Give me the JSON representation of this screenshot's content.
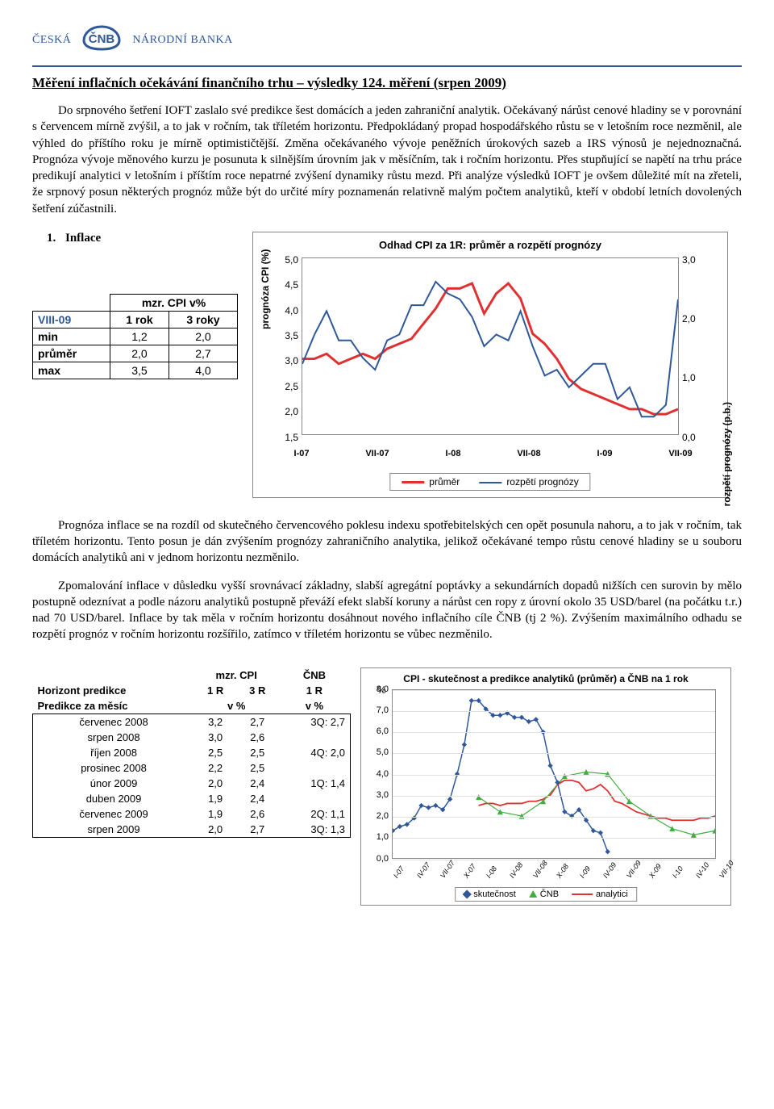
{
  "logo": {
    "left": "ČESKÁ",
    "right": "NÁRODNÍ BANKA",
    "abbr": "ČNB"
  },
  "title": "Měření inflačních očekávání finančního trhu – výsledky 124. měření (srpen 2009)",
  "para1": "Do srpnového šetření IOFT zaslalo své predikce šest domácích a jeden zahraniční analytik. Očekávaný nárůst cenové hladiny se v porovnání s červencem mírně zvýšil, a to jak v ročním, tak tříletém horizontu. Předpokládaný propad hospodářského růstu se v letošním roce nezměnil, ale výhled do příštího roku je mírně optimističtější. Změna očekávaného vývoje peněžních úrokových sazeb a IRS výnosů je nejednoznačná. Prognóza vývoje měnového kurzu je posunuta k silnějším úrovním jak v měsíčním, tak i ročním horizontu. Přes stupňující se napětí na trhu práce predikují analytici v letošním i příštím roce nepatrné zvýšení dynamiky růstu mezd. Při analýze výsledků IOFT je ovšem důležité mít na zřeteli, že srpnový posun některých prognóz může být do určité míry poznamenán relativně malým počtem analytiků, kteří v období letních dovolených šetření zúčastnili.",
  "section1": {
    "num": "1.",
    "label": "Inflace"
  },
  "mini_table": {
    "sup_header": "mzr. CPI v%",
    "corner": "VIII-09",
    "cols": [
      "1 rok",
      "3 roky"
    ],
    "rows": [
      {
        "label": "min",
        "v1": "1,2",
        "v2": "2,0"
      },
      {
        "label": "průměr",
        "v1": "2,0",
        "v2": "2,7"
      },
      {
        "label": "max",
        "v1": "3,5",
        "v2": "4,0"
      }
    ]
  },
  "chart1": {
    "title": "Odhad CPI za 1R: průměr a rozpětí prognózy",
    "y_left_label": "prognóza CPI (%)",
    "y_right_label": "rozpětí prognózy (p.b.)",
    "y_left": {
      "min": 1.5,
      "max": 5.0,
      "ticks": [
        "5,0",
        "4,5",
        "4,0",
        "3,5",
        "3,0",
        "2,5",
        "2,0",
        "1,5"
      ]
    },
    "y_right": {
      "min": 0.0,
      "max": 3.0,
      "ticks": [
        "3,0",
        "2,0",
        "1,0",
        "0,0"
      ]
    },
    "x_ticks": [
      "I-07",
      "VII-07",
      "I-08",
      "VII-08",
      "I-09",
      "VII-09"
    ],
    "legend": [
      {
        "label": "průměr",
        "color": "#e03030",
        "width": 3
      },
      {
        "label": "rozpětí prognózy",
        "color": "#2f5899",
        "width": 2
      }
    ],
    "series_prumer": [
      3.0,
      3.0,
      3.1,
      2.9,
      3.0,
      3.1,
      3.0,
      3.2,
      3.3,
      3.4,
      3.7,
      4.0,
      4.4,
      4.4,
      4.5,
      3.9,
      4.3,
      4.5,
      4.2,
      3.5,
      3.3,
      3.0,
      2.6,
      2.4,
      2.3,
      2.2,
      2.1,
      2.0,
      2.0,
      1.9,
      1.9,
      2.0
    ],
    "series_rozpeti": [
      1.2,
      1.7,
      2.1,
      1.6,
      1.6,
      1.3,
      1.1,
      1.6,
      1.7,
      2.2,
      2.2,
      2.6,
      2.4,
      2.3,
      2.0,
      1.5,
      1.7,
      1.6,
      2.1,
      1.5,
      1.0,
      1.1,
      0.8,
      1.0,
      1.2,
      1.2,
      0.6,
      0.8,
      0.3,
      0.3,
      0.5,
      2.3
    ]
  },
  "para2": "Prognóza inflace se na rozdíl od skutečného červencového poklesu indexu spotřebitelských cen opět posunula nahoru, a to jak v ročním, tak tříletém horizontu. Tento posun je dán zvýšením prognózy zahraničního analytika, jelikož očekávané tempo růstu cenové hladiny se u souboru domácích analytiků ani v jednom horizontu nezměnilo.",
  "para3": "Zpomalování inflace v důsledku vyšší srovnávací základny, slabší agregátní poptávky a sekundárních dopadů nižších cen surovin by mělo postupně odeznívat a podle názoru analytiků postupně převáží efekt slabší koruny a nárůst cen ropy z úrovní okolo 35 USD/barel (na počátku t.r.) nad 70 USD/barel. Inflace by tak měla v ročním horizontu dosáhnout nového inflačního cíle ČNB (tj 2 %). Zvýšením maximálního odhadu se rozpětí prognóz v ročním horizontu rozšířilo, zatímco v tříletém horizontu se vůbec nezměnilo.",
  "pred_table": {
    "hdr_group": "mzr. CPI",
    "hdr_cnb": "ČNB",
    "row_horizon": {
      "label": "Horizont predikce",
      "c1": "1 R",
      "c2": "3 R",
      "c3": "1 R"
    },
    "row_unit": {
      "label": "Predikce za měsíc",
      "c1": "v %",
      "c3": "v %"
    },
    "rows": [
      {
        "m": "červenec 2008",
        "a": "3,2",
        "b": "2,7",
        "c": "3Q: 2,7"
      },
      {
        "m": "srpen 2008",
        "a": "3,0",
        "b": "2,6",
        "c": ""
      },
      {
        "m": "říjen 2008",
        "a": "2,5",
        "b": "2,5",
        "c": "4Q: 2,0"
      },
      {
        "m": "prosinec 2008",
        "a": "2,2",
        "b": "2,5",
        "c": ""
      },
      {
        "m": "únor 2009",
        "a": "2,0",
        "b": "2,4",
        "c": "1Q: 1,4"
      },
      {
        "m": "duben 2009",
        "a": "1,9",
        "b": "2,4",
        "c": ""
      },
      {
        "m": "červenec 2009",
        "a": "1,9",
        "b": "2,6",
        "c": "2Q: 1,1"
      },
      {
        "m": "srpen 2009",
        "a": "2,0",
        "b": "2,7",
        "c": "3Q: 1,3"
      }
    ]
  },
  "chart2": {
    "title": "CPI - skutečnost a predikce analytiků (průměr) a ČNB na 1 rok",
    "pct": "%",
    "y": {
      "min": 0,
      "max": 8,
      "ticks": [
        "8,0",
        "7,0",
        "6,0",
        "5,0",
        "4,0",
        "3,0",
        "2,0",
        "1,0",
        "0,0"
      ]
    },
    "x_ticks": [
      "I-07",
      "IV-07",
      "VII-07",
      "X-07",
      "I-08",
      "IV-08",
      "VII-08",
      "X-08",
      "I-09",
      "IV-09",
      "VII-09",
      "X-09",
      "I-10",
      "IV-10",
      "VII-10"
    ],
    "colors": {
      "sk": "#2f5899",
      "cnb": "#3fae3f",
      "an": "#e03030",
      "grid": "#e0e0e0"
    },
    "legend": [
      {
        "label": "skutečnost",
        "type": "diamond"
      },
      {
        "label": "ČNB",
        "type": "triangle"
      },
      {
        "label": "analytici",
        "type": "line"
      }
    ],
    "series_sk": [
      1.3,
      1.5,
      1.6,
      1.9,
      2.5,
      2.4,
      2.5,
      2.3,
      2.8,
      4.0,
      5.4,
      7.5,
      7.5,
      7.1,
      6.8,
      6.8,
      6.9,
      6.7,
      6.7,
      6.5,
      6.6,
      6.0,
      4.4,
      3.6,
      2.2,
      2.0,
      2.3,
      1.8,
      1.3,
      1.2,
      0.3
    ],
    "series_cnb": [
      null,
      null,
      null,
      null,
      null,
      null,
      null,
      null,
      null,
      null,
      null,
      null,
      2.9,
      null,
      null,
      2.2,
      null,
      null,
      2.0,
      null,
      null,
      2.7,
      null,
      null,
      3.9,
      null,
      null,
      4.1,
      null,
      null,
      4.0,
      null,
      null,
      2.7,
      null,
      null,
      2.0,
      null,
      null,
      1.4,
      null,
      null,
      1.1,
      null,
      null,
      1.3
    ],
    "series_an": [
      null,
      null,
      null,
      null,
      null,
      null,
      null,
      null,
      null,
      null,
      null,
      null,
      2.5,
      2.6,
      2.6,
      2.5,
      2.6,
      2.6,
      2.6,
      2.7,
      2.7,
      2.8,
      3.0,
      3.5,
      3.7,
      3.7,
      3.6,
      3.2,
      3.3,
      3.5,
      3.2,
      2.7,
      2.6,
      2.4,
      2.2,
      2.1,
      2.0,
      1.9,
      1.9,
      1.8,
      1.8,
      1.8,
      1.8,
      1.9,
      1.9,
      2.0
    ]
  }
}
